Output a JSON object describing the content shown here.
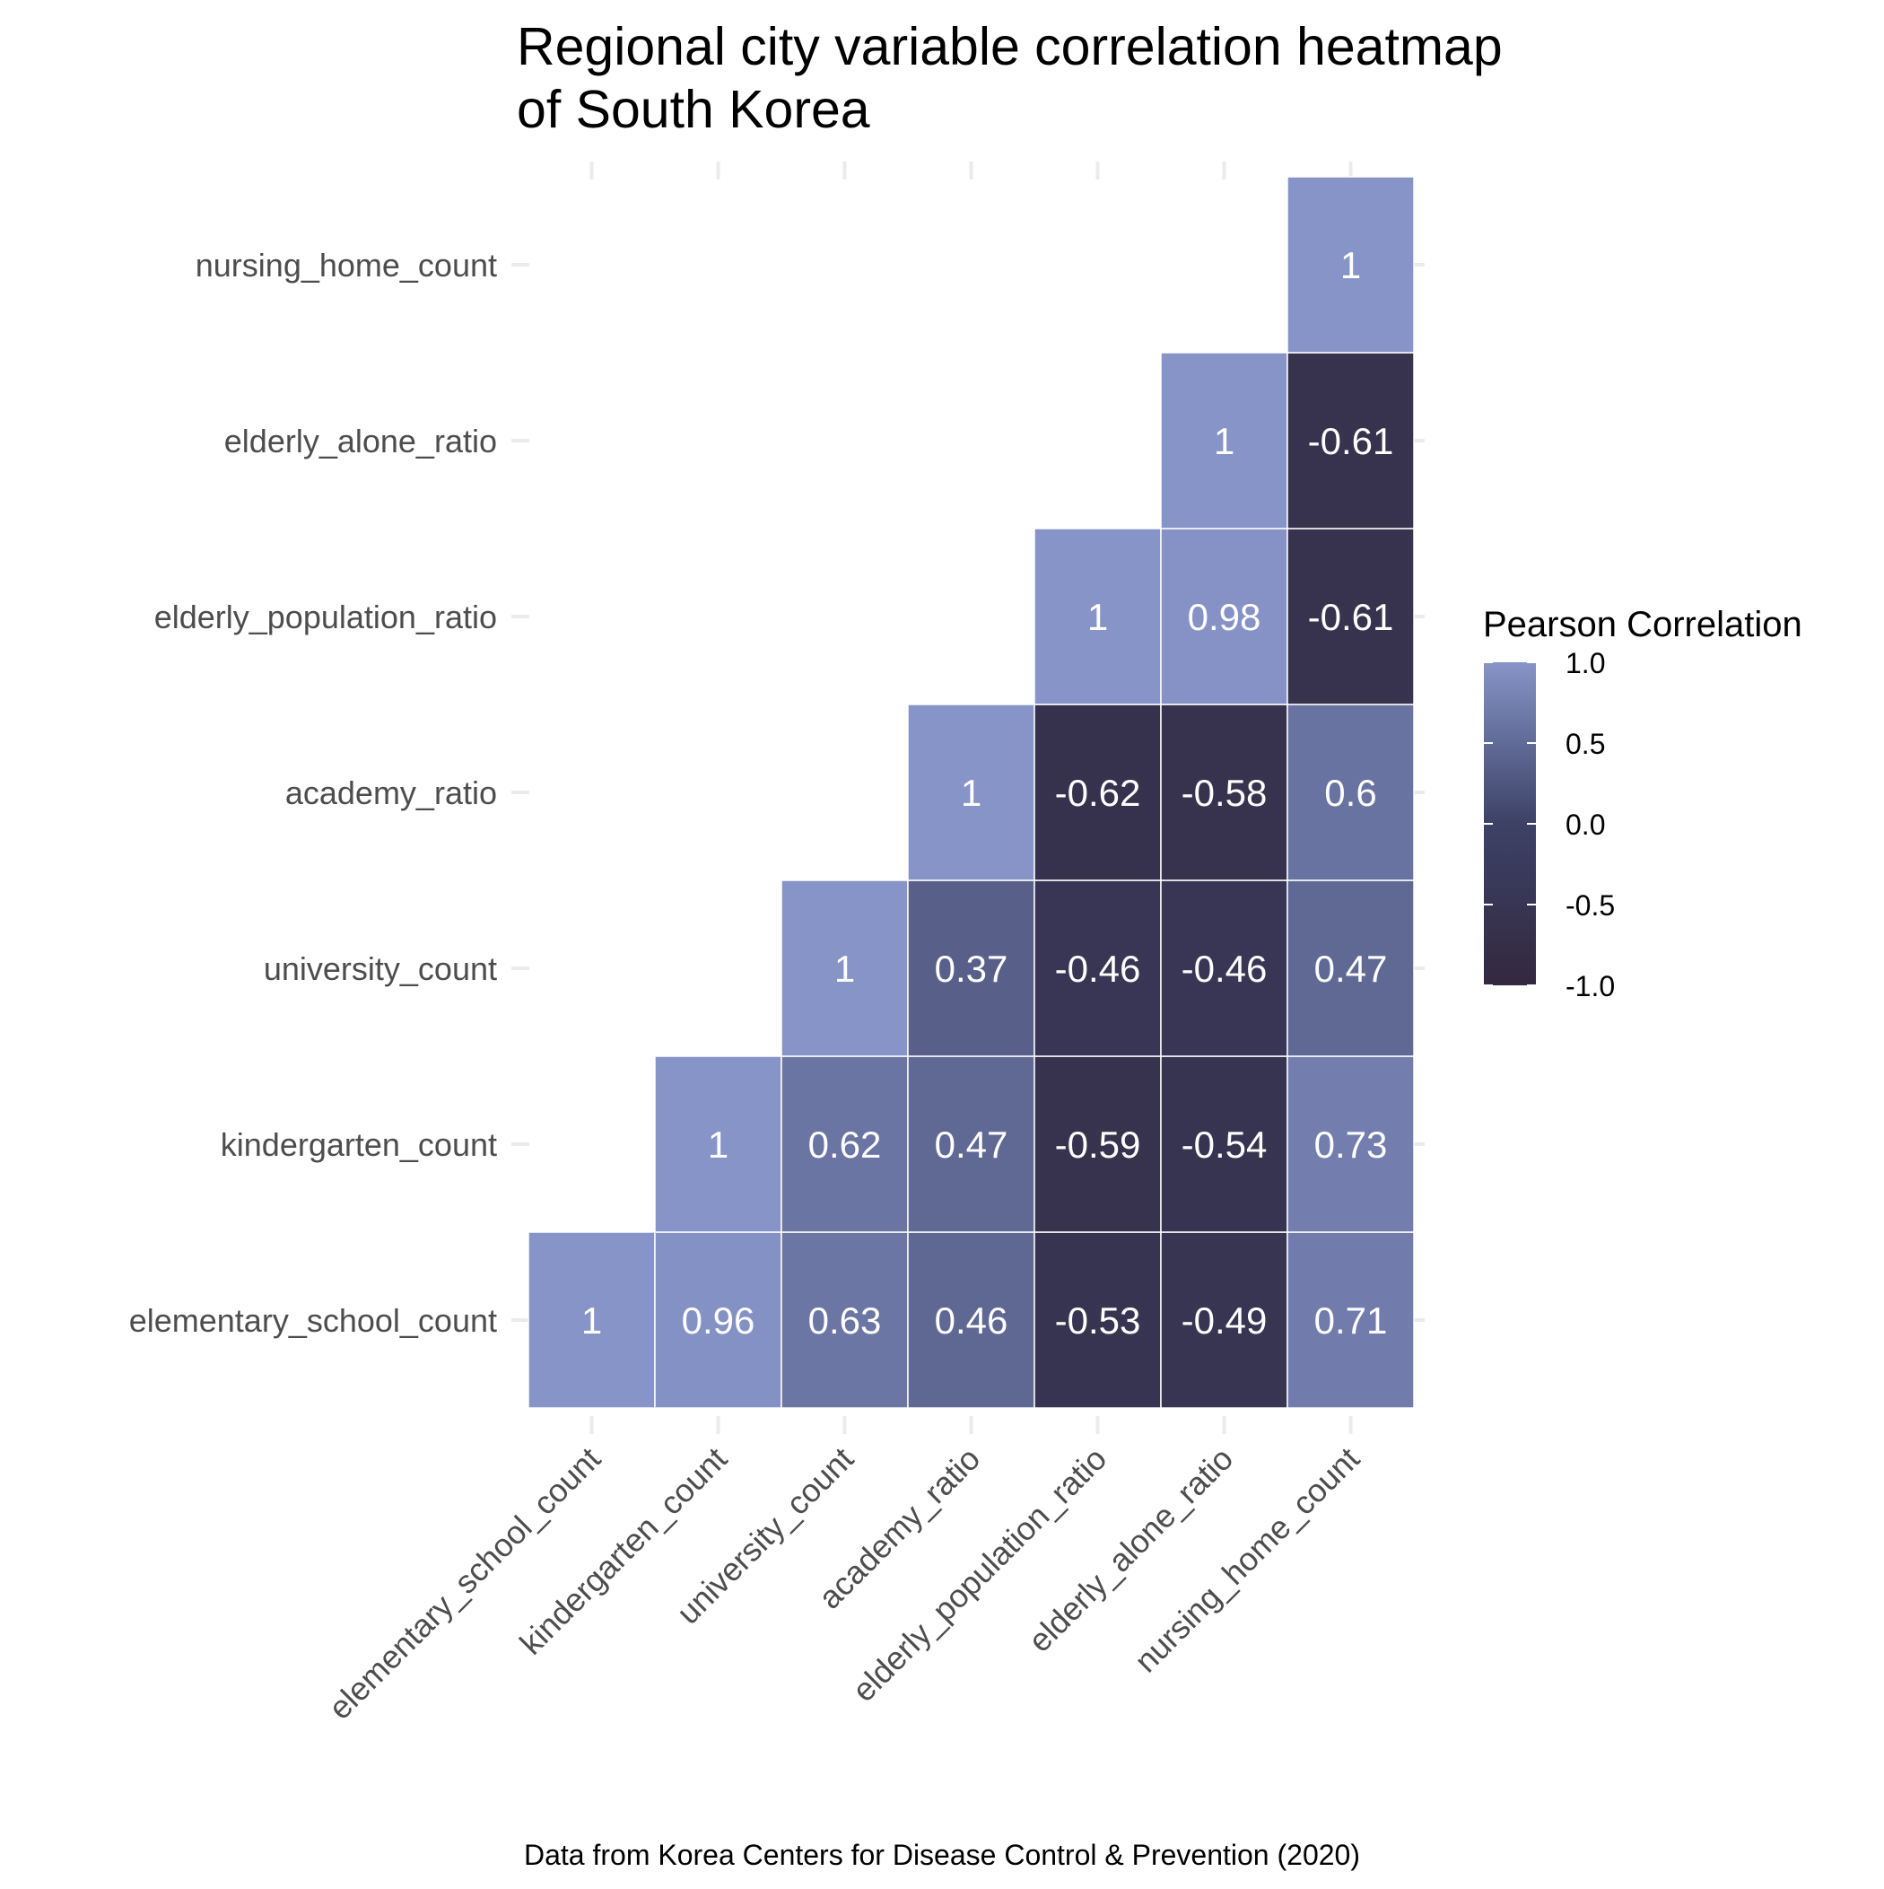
{
  "chart_data": {
    "type": "heatmap",
    "title_lines": [
      "Regional city variable correlation heatmap",
      "of South Korea"
    ],
    "caption": "Data from Korea Centers for Disease Control & Prevention (2020)",
    "variables": [
      "elementary_school_count",
      "kindergarten_count",
      "university_count",
      "academy_ratio",
      "elderly_population_ratio",
      "elderly_alone_ratio",
      "nursing_home_count"
    ],
    "cells": [
      {
        "x": "elementary_school_count",
        "y": "elementary_school_count",
        "value": 1,
        "label": "1"
      },
      {
        "x": "kindergarten_count",
        "y": "elementary_school_count",
        "value": 0.96,
        "label": "0.96"
      },
      {
        "x": "university_count",
        "y": "elementary_school_count",
        "value": 0.63,
        "label": "0.63"
      },
      {
        "x": "academy_ratio",
        "y": "elementary_school_count",
        "value": 0.46,
        "label": "0.46"
      },
      {
        "x": "elderly_population_ratio",
        "y": "elementary_school_count",
        "value": -0.53,
        "label": "-0.53"
      },
      {
        "x": "elderly_alone_ratio",
        "y": "elementary_school_count",
        "value": -0.49,
        "label": "-0.49"
      },
      {
        "x": "nursing_home_count",
        "y": "elementary_school_count",
        "value": 0.71,
        "label": "0.71"
      },
      {
        "x": "kindergarten_count",
        "y": "kindergarten_count",
        "value": 1,
        "label": "1"
      },
      {
        "x": "university_count",
        "y": "kindergarten_count",
        "value": 0.62,
        "label": "0.62"
      },
      {
        "x": "academy_ratio",
        "y": "kindergarten_count",
        "value": 0.47,
        "label": "0.47"
      },
      {
        "x": "elderly_population_ratio",
        "y": "kindergarten_count",
        "value": -0.59,
        "label": "-0.59"
      },
      {
        "x": "elderly_alone_ratio",
        "y": "kindergarten_count",
        "value": -0.54,
        "label": "-0.54"
      },
      {
        "x": "nursing_home_count",
        "y": "kindergarten_count",
        "value": 0.73,
        "label": "0.73"
      },
      {
        "x": "university_count",
        "y": "university_count",
        "value": 1,
        "label": "1"
      },
      {
        "x": "academy_ratio",
        "y": "university_count",
        "value": 0.37,
        "label": "0.37"
      },
      {
        "x": "elderly_population_ratio",
        "y": "university_count",
        "value": -0.46,
        "label": "-0.46"
      },
      {
        "x": "elderly_alone_ratio",
        "y": "university_count",
        "value": -0.46,
        "label": "-0.46"
      },
      {
        "x": "nursing_home_count",
        "y": "university_count",
        "value": 0.47,
        "label": "0.47"
      },
      {
        "x": "academy_ratio",
        "y": "academy_ratio",
        "value": 1,
        "label": "1"
      },
      {
        "x": "elderly_population_ratio",
        "y": "academy_ratio",
        "value": -0.62,
        "label": "-0.62"
      },
      {
        "x": "elderly_alone_ratio",
        "y": "academy_ratio",
        "value": -0.58,
        "label": "-0.58"
      },
      {
        "x": "nursing_home_count",
        "y": "academy_ratio",
        "value": 0.6,
        "label": "0.6"
      },
      {
        "x": "elderly_population_ratio",
        "y": "elderly_population_ratio",
        "value": 1,
        "label": "1"
      },
      {
        "x": "elderly_alone_ratio",
        "y": "elderly_population_ratio",
        "value": 0.98,
        "label": "0.98"
      },
      {
        "x": "nursing_home_count",
        "y": "elderly_population_ratio",
        "value": -0.61,
        "label": "-0.61"
      },
      {
        "x": "elderly_alone_ratio",
        "y": "elderly_alone_ratio",
        "value": 1,
        "label": "1"
      },
      {
        "x": "nursing_home_count",
        "y": "elderly_alone_ratio",
        "value": -0.61,
        "label": "-0.61"
      },
      {
        "x": "nursing_home_count",
        "y": "nursing_home_count",
        "value": 1,
        "label": "1"
      }
    ],
    "legend": {
      "title": "Pearson Correlation",
      "ticks": [
        {
          "value": 1.0,
          "label": "1.0"
        },
        {
          "value": 0.5,
          "label": "0.5"
        },
        {
          "value": 0.0,
          "label": "0.0"
        },
        {
          "value": -0.5,
          "label": "-0.5"
        },
        {
          "value": -1.0,
          "label": "-1.0"
        }
      ],
      "range": [
        -1,
        1
      ],
      "position": "right"
    },
    "colors": {
      "low": "#33283f",
      "mid": "#3c4266",
      "high": "#8794c8",
      "cell_text": "#ffffff",
      "grid": "#ebebeb",
      "axis_text": "#4d4d4d"
    }
  }
}
